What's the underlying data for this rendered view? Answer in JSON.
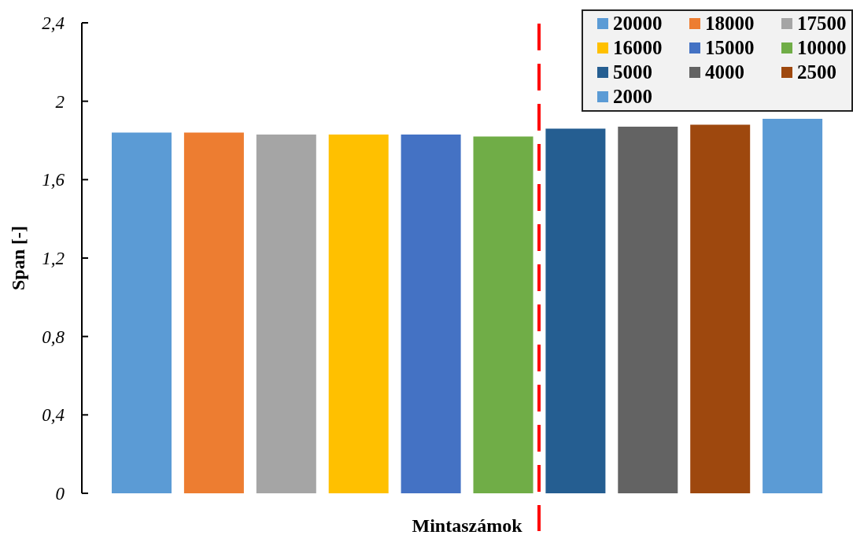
{
  "chart_data": {
    "type": "bar",
    "xlabel": "Mintaszámok",
    "ylabel": "Span [-]",
    "categories": [
      null,
      null,
      null,
      null,
      null,
      null,
      null,
      null,
      null,
      null
    ],
    "series": [
      {
        "name": "20000",
        "color": "#5b9bd5",
        "values": [
          1.84,
          null,
          null,
          null,
          null,
          null,
          null,
          null,
          null,
          null
        ]
      },
      {
        "name": "18000",
        "color": "#ed7d31",
        "values": [
          null,
          1.84,
          null,
          null,
          null,
          null,
          null,
          null,
          null,
          null
        ]
      },
      {
        "name": "17500",
        "color": "#a5a5a5",
        "values": [
          null,
          null,
          1.83,
          null,
          null,
          null,
          null,
          null,
          null,
          null
        ]
      },
      {
        "name": "16000",
        "color": "#ffc000",
        "values": [
          null,
          null,
          null,
          1.83,
          null,
          null,
          null,
          null,
          null,
          null
        ]
      },
      {
        "name": "15000",
        "color": "#4472c4",
        "values": [
          null,
          null,
          null,
          null,
          1.83,
          null,
          null,
          null,
          null,
          null
        ]
      },
      {
        "name": "10000",
        "color": "#70ad47",
        "values": [
          null,
          null,
          null,
          null,
          null,
          1.82,
          null,
          null,
          null,
          null
        ]
      },
      {
        "name": "5000",
        "color": "#255e91",
        "values": [
          null,
          null,
          null,
          null,
          null,
          null,
          1.86,
          null,
          null,
          null
        ]
      },
      {
        "name": "4000",
        "color": "#636363",
        "values": [
          null,
          null,
          null,
          null,
          null,
          null,
          null,
          1.87,
          null,
          null
        ]
      },
      {
        "name": "2500",
        "color": "#9e480e",
        "values": [
          null,
          null,
          null,
          null,
          null,
          null,
          null,
          null,
          1.88,
          null
        ]
      },
      {
        "name": "2000",
        "color": "#5b9bd5",
        "values": [
          null,
          null,
          null,
          null,
          null,
          null,
          null,
          null,
          null,
          1.91
        ]
      }
    ],
    "stacked": true,
    "ylim": [
      0,
      2.4
    ],
    "yticks": [
      {
        "value": 0,
        "label": "0"
      },
      {
        "value": 0.4,
        "label": "0,4"
      },
      {
        "value": 0.8,
        "label": "0,8"
      },
      {
        "value": 1.2,
        "label": "1,2"
      },
      {
        "value": 1.6,
        "label": "1,6"
      },
      {
        "value": 2,
        "label": "2"
      },
      {
        "value": 2.4,
        "label": "2,4"
      }
    ],
    "tick_labels": "y",
    "legend": "top right"
  }
}
